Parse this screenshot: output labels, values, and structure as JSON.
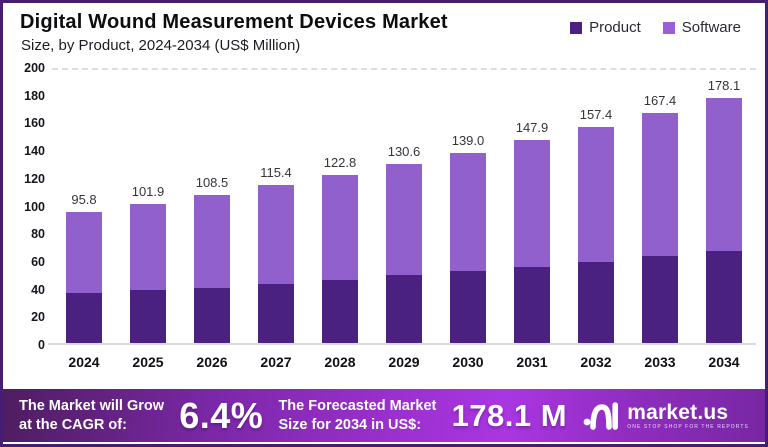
{
  "header": {
    "title": "Digital Wound Measurement Devices Market",
    "subtitle": "Size, by Product, 2024-2034 (US$ Million)"
  },
  "legend": {
    "items": [
      {
        "label": "Product",
        "color": "#4a2080"
      },
      {
        "label": "Software",
        "color": "#9a5fd6"
      }
    ]
  },
  "chart_data": {
    "type": "bar",
    "stacked": true,
    "title": "Digital Wound Measurement Devices Market",
    "subtitle": "Size, by Product, 2024-2034 (US$ Million)",
    "xlabel": "",
    "ylabel": "US$ Million",
    "ylim": [
      0,
      200
    ],
    "yticks": [
      0,
      20,
      40,
      60,
      80,
      100,
      120,
      140,
      160,
      180,
      200
    ],
    "grid": "baseline-only",
    "legend_position": "top-right",
    "categories": [
      "2024",
      "2025",
      "2026",
      "2027",
      "2028",
      "2029",
      "2030",
      "2031",
      "2032",
      "2033",
      "2034"
    ],
    "totals": [
      95.8,
      101.9,
      108.5,
      115.4,
      122.8,
      130.6,
      139.0,
      147.9,
      157.4,
      167.4,
      178.1
    ],
    "total_labels": [
      "95.8",
      "101.9",
      "108.5",
      "115.4",
      "122.8",
      "130.6",
      "139.0",
      "147.9",
      "157.4",
      "167.4",
      "178.1"
    ],
    "series": [
      {
        "name": "Product",
        "color": "#4a2080",
        "values": [
          37.8,
          39.6,
          41.5,
          44.4,
          47.1,
          50.2,
          53.7,
          56.6,
          59.8,
          64.5,
          68.2
        ]
      },
      {
        "name": "Software",
        "color": "#9160cc",
        "values": [
          58.0,
          62.3,
          67.0,
          71.0,
          75.7,
          80.4,
          85.3,
          91.3,
          97.6,
          102.9,
          109.9
        ]
      }
    ]
  },
  "footer": {
    "cagr_label_line1": "The Market will Grow",
    "cagr_label_line2": "at the CAGR of:",
    "cagr_value": "6.4%",
    "forecast_label_line1": "The Forecasted Market",
    "forecast_label_line2": "Size for 2034 in US$:",
    "forecast_value": "178.1 M",
    "brand_name": "market.us",
    "brand_tagline": "ONE STOP SHOP FOR THE REPORTS"
  },
  "colors": {
    "product": "#4a2080",
    "software": "#9160cc",
    "frame_border": "#451d72",
    "banner_gradient_start": "#4e1d60",
    "banner_gradient_mid": "#aa36e2",
    "banner_gradient_end": "#7727a3"
  }
}
